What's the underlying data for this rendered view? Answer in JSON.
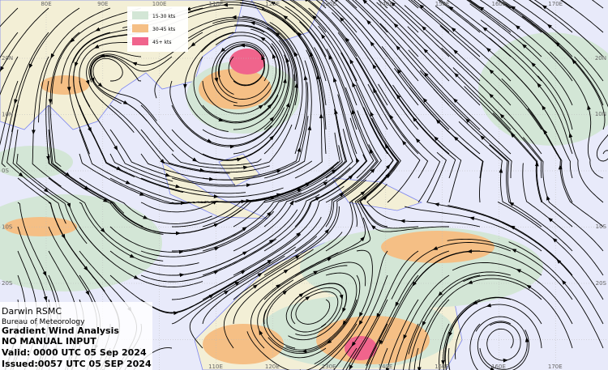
{
  "map": {
    "top_lon_labels": [
      "80E",
      "90E",
      "100E",
      "110E",
      "120E",
      "130E",
      "140E",
      "150E",
      "160E",
      "170E"
    ],
    "bottom_lon_labels": [
      "110E",
      "120E",
      "130E",
      "140E",
      "150E",
      "160E",
      "170E"
    ],
    "left_lat_labels": [
      "20N",
      "10N",
      "0S",
      "10S",
      "20S"
    ],
    "right_lat_labels": [
      "20N",
      "10N",
      "10S",
      "20S"
    ]
  },
  "legend": {
    "items": [
      {
        "label": "15-30 kts",
        "color": "#d3e6d6"
      },
      {
        "label": "30-45 kts",
        "color": "#f5bf85"
      },
      {
        "label": "45+ kts",
        "color": "#f0648c"
      }
    ]
  },
  "info": {
    "centre": "Darwin RSMC",
    "agency": "Bureau of Meteorology",
    "product": "Gradient Wind Analysis",
    "note": "NO MANUAL INPUT",
    "valid": "Valid:   0000 UTC 05 Sep 2024",
    "issued": "Issued:0057 UTC 05 SEP 2024"
  }
}
